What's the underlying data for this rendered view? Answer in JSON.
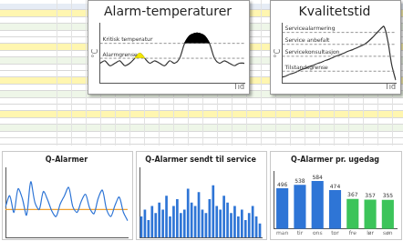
{
  "chart_data": [
    {
      "type": "line",
      "title": "Alarm-temperaturer",
      "x_label": "Tid",
      "y_label": "°C",
      "ylim": [
        0,
        12
      ],
      "tick_labels": false,
      "grid": false,
      "annotations": [
        {
          "text": "Kritisk temperatur",
          "y": 8
        },
        {
          "text": "Alarmgrense",
          "y": 5
        }
      ],
      "series": [
        {
          "type": "area",
          "color": "#000000",
          "fill_to": 8,
          "values": [
            null,
            null,
            null,
            null,
            null,
            null,
            null,
            null,
            null,
            null,
            null,
            null,
            null,
            null,
            null,
            null,
            null,
            8,
            9.5,
            10,
            10,
            9.5,
            8,
            null,
            null,
            null,
            null,
            null,
            null,
            null
          ]
        },
        {
          "type": "area",
          "color": "#f2e600",
          "fill_to": 5,
          "values": [
            null,
            null,
            null,
            null,
            null,
            null,
            null,
            5,
            6,
            5,
            null,
            null,
            null,
            null,
            null,
            null,
            null,
            null,
            null,
            null,
            null,
            null,
            null,
            null,
            null,
            null,
            null,
            null,
            null,
            null
          ]
        },
        {
          "type": "line",
          "color": "#333333",
          "values": [
            4,
            4.5,
            3.5,
            4,
            4.5,
            3.5,
            4,
            5,
            6,
            5,
            4,
            4.5,
            4,
            3.5,
            4.5,
            4,
            5,
            8,
            9.5,
            10,
            10,
            9.5,
            8,
            5,
            4,
            4.5,
            4,
            3.5,
            4,
            4
          ]
        }
      ]
    },
    {
      "type": "line",
      "title": "Kvalitetstid",
      "x_label": "Tid",
      "y_label": "°C",
      "ylim": [
        0,
        10
      ],
      "tick_labels": false,
      "grid": false,
      "annotations": [
        {
          "text": "Servicealarmering",
          "y": 8.5
        },
        {
          "text": "Service anbefalt",
          "y": 6.5
        },
        {
          "text": "Servicekonsultasjon",
          "y": 4.5
        },
        {
          "text": "Tilstandsgrense",
          "y": 2
        }
      ],
      "series": [
        {
          "type": "line",
          "color": "#333333",
          "values": [
            1,
            1.2,
            1.5,
            1.7,
            2,
            2.3,
            2.5,
            2.8,
            3,
            3.3,
            3.5,
            3.8,
            4,
            4.3,
            4.6,
            4.8,
            5.1,
            5.4,
            5.6,
            5.9,
            6.2,
            6.5,
            7,
            7.6,
            8.3,
            9,
            9.5,
            7,
            3,
            0.5
          ]
        }
      ]
    },
    {
      "type": "line",
      "title": "Q-Alarmer",
      "ylim": [
        0,
        50
      ],
      "tick_labels": false,
      "grid": false,
      "series": [
        {
          "color": "#2e75d6",
          "values": [
            22,
            30,
            18,
            35,
            28,
            16,
            40,
            25,
            20,
            33,
            27,
            19,
            15,
            24,
            30,
            36,
            22,
            18,
            26,
            31,
            21,
            17,
            28,
            34,
            20,
            15,
            23,
            29,
            18,
            12
          ]
        },
        {
          "color": "#f0a030",
          "values": [
            20,
            20,
            20,
            20,
            20,
            20,
            20,
            20,
            20,
            20,
            20,
            20,
            20,
            20,
            20,
            20,
            20,
            20,
            20,
            20,
            20,
            20,
            20,
            20,
            20,
            20,
            20,
            20,
            20,
            20
          ]
        }
      ]
    },
    {
      "type": "bar",
      "title": "Q-Alarmer sendt til service",
      "ylim": [
        0,
        20
      ],
      "tick_labels": false,
      "grid": false,
      "color": "#2e75d6",
      "values": [
        6,
        8,
        5,
        9,
        7,
        10,
        8,
        12,
        6,
        9,
        11,
        7,
        8,
        14,
        10,
        9,
        13,
        8,
        7,
        11,
        15,
        9,
        8,
        12,
        10,
        7,
        9,
        6,
        8,
        5,
        7,
        9,
        6,
        4
      ]
    },
    {
      "type": "bar",
      "title": "Q-Alarmer pr. ugedag",
      "ylim": [
        0,
        700
      ],
      "tick_labels": "x",
      "grid": false,
      "data_labels": true,
      "categories": [
        "man",
        "tir",
        "ons",
        "tor",
        "fre",
        "lør",
        "søn"
      ],
      "values": [
        496,
        538,
        584,
        474,
        367,
        357,
        355
      ],
      "colors": [
        "#2e75d6",
        "#2e75d6",
        "#2e75d6",
        "#2e75d6",
        "#3cc45a",
        "#3cc45a",
        "#3cc45a"
      ]
    }
  ]
}
